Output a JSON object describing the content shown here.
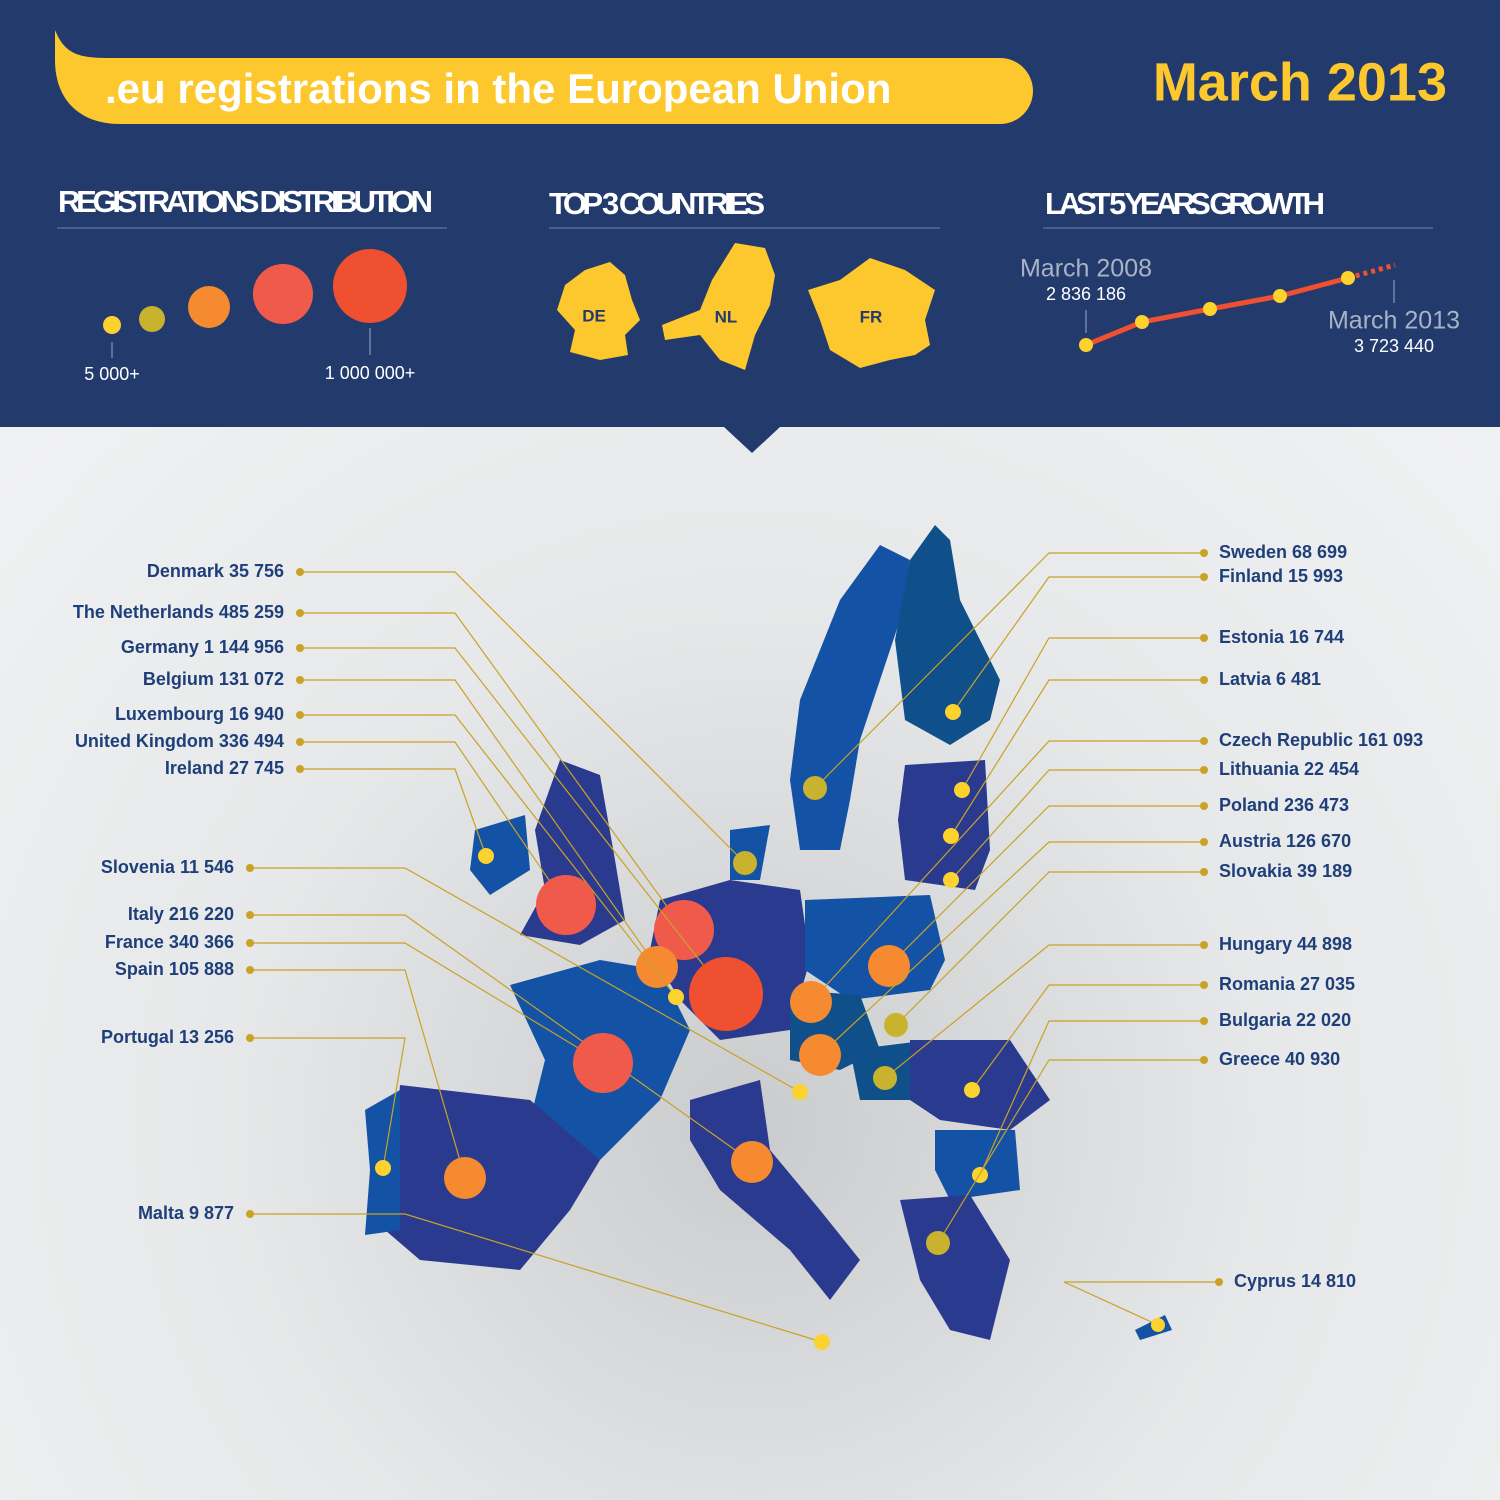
{
  "header": {
    "title": ".eu registrations in the European Union",
    "date": "March 2013"
  },
  "distribution": {
    "title": "REGISTRATIONS DISTRIBUTION",
    "min_label": "5 000+",
    "max_label": "1 000 000+"
  },
  "top3": {
    "title": "TOP 3 COUNTRIES",
    "countries": [
      "DE",
      "NL",
      "FR"
    ]
  },
  "growth": {
    "title": "LAST 5 YEARS GROWTH",
    "start": {
      "label": "March 2008",
      "value": "2 836 186"
    },
    "end": {
      "label": "March 2013",
      "value": "3 723 440"
    }
  },
  "map": {
    "countries": [
      "Denmark 35 756",
      "The Netherlands 485 259",
      "Germany 1 144 956",
      "Belgium 131 072",
      "Luxembourg 16 940",
      "United Kingdom 336 494",
      "Ireland 27 745",
      "Slovenia 11 546",
      "Italy 216 220",
      "France 340 366",
      "Spain 105 888",
      "Portugal 13 256",
      "Malta 9 877",
      "Sweden 68 699",
      "Finland 15 993",
      "Estonia 16 744",
      "Latvia 6 481",
      "Czech Republic 161 093",
      "Lithuania 22 454",
      "Poland 236 473",
      "Austria 126 670",
      "Slovakia 39 189",
      "Hungary 44 898",
      "Romania 27 035",
      "Bulgaria 22 020",
      "Greece 40 930",
      "Cyprus 14 810"
    ]
  }
}
